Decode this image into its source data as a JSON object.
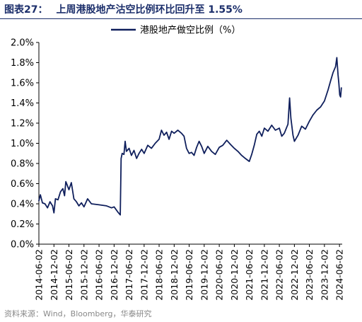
{
  "header": {
    "figure_label": "图表27：",
    "title": "上周港股地产沽空比例环比回升至 1.55%"
  },
  "footer": {
    "source": "资料来源：Wind，Bloomberg，华泰研究"
  },
  "colors": {
    "line": "#0f1f5c",
    "title": "#1c2f6b",
    "text": "#000000",
    "source": "#888888"
  },
  "chart_data": {
    "type": "line",
    "title": "",
    "xlabel": "",
    "ylabel": "",
    "ylim": [
      0,
      0.02
    ],
    "yticks": [
      "0.0%",
      "0.2%",
      "0.4%",
      "0.6%",
      "0.8%",
      "1.0%",
      "1.2%",
      "1.4%",
      "1.6%",
      "1.8%",
      "2.0%"
    ],
    "xticks": [
      "2014-06-02",
      "2014-12-02",
      "2015-06-02",
      "2015-12-02",
      "2016-06-02",
      "2016-12-02",
      "2017-06-02",
      "2017-12-02",
      "2018-06-02",
      "2018-12-02",
      "2019-06-02",
      "2019-12-02",
      "2020-06-02",
      "2020-12-02",
      "2021-06-02",
      "2021-12-02",
      "2022-06-02",
      "2022-12-02",
      "2023-06-02",
      "2023-12-02",
      "2024-06-02"
    ],
    "grid": false,
    "legend_position": "top-center",
    "series": [
      {
        "name": "港股地产做空比例（%）",
        "points": [
          [
            "2014-06-02",
            0.0043
          ],
          [
            "2014-06-20",
            0.0049
          ],
          [
            "2014-07-15",
            0.0041
          ],
          [
            "2014-08-15",
            0.004
          ],
          [
            "2014-09-15",
            0.0036
          ],
          [
            "2014-10-15",
            0.0042
          ],
          [
            "2014-11-15",
            0.0038
          ],
          [
            "2014-12-02",
            0.0031
          ],
          [
            "2014-12-20",
            0.0045
          ],
          [
            "2015-01-20",
            0.0044
          ],
          [
            "2015-02-20",
            0.0052
          ],
          [
            "2015-03-20",
            0.0055
          ],
          [
            "2015-04-10",
            0.0048
          ],
          [
            "2015-04-25",
            0.0062
          ],
          [
            "2015-05-10",
            0.0059
          ],
          [
            "2015-06-02",
            0.0054
          ],
          [
            "2015-07-01",
            0.0061
          ],
          [
            "2015-08-01",
            0.0045
          ],
          [
            "2015-09-01",
            0.0042
          ],
          [
            "2015-10-01",
            0.0038
          ],
          [
            "2015-11-01",
            0.0041
          ],
          [
            "2015-12-02",
            0.0037
          ],
          [
            "2016-01-15",
            0.0045
          ],
          [
            "2016-03-01",
            0.004
          ],
          [
            "2016-06-02",
            0.0039
          ],
          [
            "2016-09-01",
            0.0038
          ],
          [
            "2016-11-01",
            0.0036
          ],
          [
            "2016-12-02",
            0.0037
          ],
          [
            "2017-01-15",
            0.0032
          ],
          [
            "2017-02-15",
            0.0029
          ],
          [
            "2017-02-25",
            0.0085
          ],
          [
            "2017-03-10",
            0.009
          ],
          [
            "2017-04-01",
            0.0089
          ],
          [
            "2017-04-15",
            0.0102
          ],
          [
            "2017-05-01",
            0.0092
          ],
          [
            "2017-06-02",
            0.0095
          ],
          [
            "2017-07-01",
            0.0088
          ],
          [
            "2017-08-01",
            0.0093
          ],
          [
            "2017-09-01",
            0.0085
          ],
          [
            "2017-10-01",
            0.009
          ],
          [
            "2017-11-01",
            0.0094
          ],
          [
            "2017-12-02",
            0.009
          ],
          [
            "2018-01-15",
            0.0098
          ],
          [
            "2018-03-01",
            0.0095
          ],
          [
            "2018-04-15",
            0.01
          ],
          [
            "2018-06-02",
            0.0104
          ],
          [
            "2018-07-01",
            0.0113
          ],
          [
            "2018-08-01",
            0.0108
          ],
          [
            "2018-09-01",
            0.0111
          ],
          [
            "2018-10-01",
            0.0104
          ],
          [
            "2018-11-01",
            0.0112
          ],
          [
            "2018-12-02",
            0.011
          ],
          [
            "2019-01-15",
            0.0113
          ],
          [
            "2019-03-01",
            0.011
          ],
          [
            "2019-04-01",
            0.0107
          ],
          [
            "2019-05-01",
            0.0095
          ],
          [
            "2019-06-02",
            0.009
          ],
          [
            "2019-07-01",
            0.0091
          ],
          [
            "2019-08-01",
            0.0088
          ],
          [
            "2019-09-01",
            0.0096
          ],
          [
            "2019-10-01",
            0.0102
          ],
          [
            "2019-11-01",
            0.0097
          ],
          [
            "2019-12-02",
            0.009
          ],
          [
            "2020-01-15",
            0.0097
          ],
          [
            "2020-03-01",
            0.0092
          ],
          [
            "2020-04-15",
            0.0089
          ],
          [
            "2020-06-02",
            0.0096
          ],
          [
            "2020-07-15",
            0.0098
          ],
          [
            "2020-09-01",
            0.0103
          ],
          [
            "2020-10-15",
            0.0099
          ],
          [
            "2020-12-02",
            0.0095
          ],
          [
            "2021-01-15",
            0.0092
          ],
          [
            "2021-03-01",
            0.0088
          ],
          [
            "2021-04-15",
            0.0085
          ],
          [
            "2021-06-02",
            0.0082
          ],
          [
            "2021-07-01",
            0.0089
          ],
          [
            "2021-08-01",
            0.0098
          ],
          [
            "2021-09-01",
            0.0109
          ],
          [
            "2021-10-01",
            0.0112
          ],
          [
            "2021-11-01",
            0.0107
          ],
          [
            "2021-12-02",
            0.0115
          ],
          [
            "2022-01-15",
            0.0112
          ],
          [
            "2022-03-01",
            0.0118
          ],
          [
            "2022-04-15",
            0.0113
          ],
          [
            "2022-06-02",
            0.0115
          ],
          [
            "2022-07-01",
            0.0107
          ],
          [
            "2022-08-01",
            0.011
          ],
          [
            "2022-09-15",
            0.0119
          ],
          [
            "2022-10-05",
            0.0145
          ],
          [
            "2022-10-20",
            0.0125
          ],
          [
            "2022-11-15",
            0.0108
          ],
          [
            "2022-12-02",
            0.0102
          ],
          [
            "2023-01-15",
            0.0108
          ],
          [
            "2023-03-01",
            0.0117
          ],
          [
            "2023-04-15",
            0.0114
          ],
          [
            "2023-06-02",
            0.0122
          ],
          [
            "2023-07-15",
            0.0128
          ],
          [
            "2023-09-01",
            0.0133
          ],
          [
            "2023-10-15",
            0.0136
          ],
          [
            "2023-12-02",
            0.0142
          ],
          [
            "2024-01-15",
            0.0153
          ],
          [
            "2024-02-15",
            0.0162
          ],
          [
            "2024-03-15",
            0.017
          ],
          [
            "2024-04-15",
            0.0176
          ],
          [
            "2024-05-01",
            0.0185
          ],
          [
            "2024-05-15",
            0.0168
          ],
          [
            "2024-05-25",
            0.016
          ],
          [
            "2024-06-05",
            0.0148
          ],
          [
            "2024-06-15",
            0.0146
          ],
          [
            "2024-06-25",
            0.0155
          ]
        ]
      }
    ]
  }
}
